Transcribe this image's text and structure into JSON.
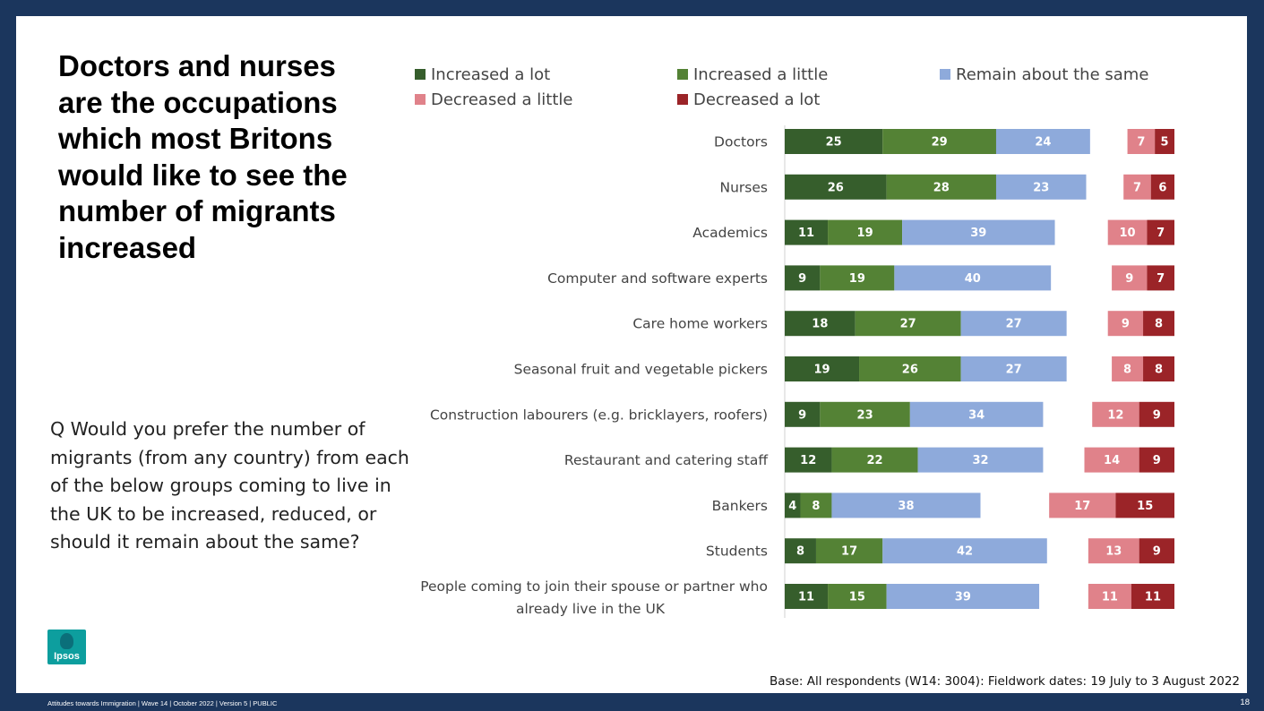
{
  "slide": {
    "title": "Doctors and nurses are the occupations which most Britons would like to see the number of migrants increased",
    "question": "Q Would you prefer the number of migrants (from any country) from each of the below groups coming to live in the UK to be increased, reduced, or should it remain about the same?",
    "base_note": "Base: All respondents (W14: 3004): Fieldwork dates: 19 July to 3 August 2022",
    "footer": "Attitudes towards Immigration | Wave 14 | October 2022 | Version 5 | PUBLIC",
    "page_number": "18",
    "logo_text": "Ipsos"
  },
  "chart_data": {
    "type": "bar",
    "orientation": "horizontal",
    "stacked": true,
    "categories": [
      "Doctors",
      "Nurses",
      "Academics",
      "Computer and software experts",
      "Care home workers",
      "Seasonal fruit and vegetable pickers",
      "Construction labourers (e.g. bricklayers, roofers)",
      "Restaurant and catering staff",
      "Bankers",
      "Students",
      "People coming to join their spouse or partner who already live in the UK"
    ],
    "category_lines": [
      [
        "Doctors"
      ],
      [
        "Nurses"
      ],
      [
        "Academics"
      ],
      [
        "Computer and software experts"
      ],
      [
        "Care home workers"
      ],
      [
        "Seasonal fruit and vegetable pickers"
      ],
      [
        "Construction labourers (e.g. bricklayers, roofers)"
      ],
      [
        "Restaurant and catering staff"
      ],
      [
        "Bankers"
      ],
      [
        "Students"
      ],
      [
        "People coming to join their spouse or partner who",
        "already live in the UK"
      ]
    ],
    "series": [
      {
        "name": "Increased a lot",
        "color": "#365e2c",
        "group": "left",
        "values": [
          25,
          26,
          11,
          9,
          18,
          19,
          9,
          12,
          4,
          8,
          11
        ]
      },
      {
        "name": "Increased a little",
        "color": "#548235",
        "group": "left",
        "values": [
          29,
          28,
          19,
          19,
          27,
          26,
          23,
          22,
          8,
          17,
          15
        ]
      },
      {
        "name": "Remain about the same",
        "color": "#8eaadb",
        "group": "left",
        "values": [
          24,
          23,
          39,
          40,
          27,
          27,
          34,
          32,
          38,
          42,
          39
        ]
      },
      {
        "name": "Decreased a little",
        "color": "#e0828a",
        "group": "right",
        "values": [
          7,
          7,
          10,
          9,
          9,
          8,
          12,
          14,
          17,
          13,
          11
        ]
      },
      {
        "name": "Decreased a lot",
        "color": "#9b2428",
        "group": "right",
        "values": [
          5,
          6,
          7,
          7,
          8,
          8,
          9,
          9,
          15,
          9,
          11
        ]
      }
    ],
    "legend_position": "top",
    "gridlines": false
  }
}
